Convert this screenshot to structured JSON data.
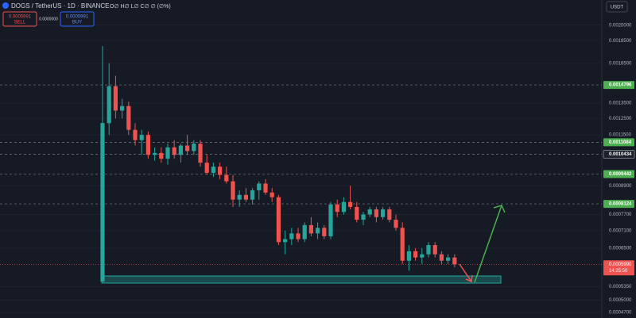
{
  "header": {
    "symbol": "DOGS / TetherUS · 1D · BINANCE",
    "ohlc": "O∅ H∅ L∅ C∅ ∅ (∅%)",
    "sell_price": "0.0005991",
    "sell_label": "SELL",
    "spread": "0.0000000",
    "buy_price": "0.0005991",
    "buy_label": "BUY",
    "currency": "USDT"
  },
  "chart_data": {
    "type": "candlestick",
    "log_scale": true,
    "grid": true,
    "up_color": "#26a69a",
    "down_color": "#ef5350",
    "ylim": [
      0.000457,
      0.00227
    ],
    "yticks": [
      {
        "value": 0.002,
        "label": "0.0020000"
      },
      {
        "value": 0.00185,
        "label": "0.0018500"
      },
      {
        "value": 0.00165,
        "label": "0.0016500"
      },
      {
        "value": 0.00135,
        "label": "0.0013500"
      },
      {
        "value": 0.00125,
        "label": "0.0012500"
      },
      {
        "value": 0.00115,
        "label": "0.0011500"
      },
      {
        "value": 0.00089,
        "label": "0.0008900"
      },
      {
        "value": 0.00077,
        "label": "0.0007700"
      },
      {
        "value": 0.00071,
        "label": "0.0007100"
      },
      {
        "value": 0.00065,
        "label": "0.0006500"
      },
      {
        "value": 0.000535,
        "label": "0.0005350"
      },
      {
        "value": 0.0005,
        "label": "0.0005000"
      },
      {
        "value": 0.00047,
        "label": "0.0004700"
      }
    ],
    "price_lines": [
      {
        "value": 0.0014796,
        "color": "#4caf50"
      },
      {
        "value": 0.0011084,
        "color": "#4caf50"
      },
      {
        "value": 0.0010434,
        "color": "#1e222d"
      },
      {
        "value": 0.0009442,
        "color": "#4caf50"
      },
      {
        "value": 0.0008124,
        "color": "#4caf50"
      }
    ],
    "last_price": {
      "value": 0.000599,
      "label": "0.0005990"
    },
    "countdown": "14:25:50",
    "open": [
      0.000549,
      0.00122,
      0.00147,
      0.0013,
      0.00133,
      0.00118,
      0.00112,
      0.00115,
      0.00104,
      0.00105,
      0.00102,
      0.00108,
      0.00104,
      0.00109,
      0.00106,
      0.0011,
      0.001,
      0.00095,
      0.00098,
      0.00094,
      0.00091,
      0.00083,
      0.00085,
      0.00083,
      0.00087,
      0.0009,
      0.00086,
      0.00084,
      0.00067,
      0.00068,
      0.0007,
      0.00068,
      0.00073,
      0.0007,
      0.00072,
      0.00069,
      0.00081,
      0.00078,
      0.00082,
      0.0008,
      0.00075,
      0.00077,
      0.00079,
      0.00076,
      0.00079,
      0.00075,
      0.00072,
      0.00061,
      0.00064,
      0.00062,
      0.00063,
      0.00066,
      0.00063,
      0.00061,
      0.00062
    ],
    "high": [
      0.0018,
      0.00165,
      0.00155,
      0.00138,
      0.00136,
      0.00122,
      0.00118,
      0.00117,
      0.00108,
      0.00108,
      0.0011,
      0.00112,
      0.0011,
      0.00115,
      0.00112,
      0.00112,
      0.00104,
      0.001,
      0.001,
      0.00098,
      0.00094,
      0.00087,
      0.00088,
      0.00088,
      0.00091,
      0.00092,
      0.00088,
      0.00085,
      0.00071,
      0.00072,
      0.00072,
      0.00074,
      0.00076,
      0.00074,
      0.00073,
      0.00082,
      0.00083,
      0.00084,
      0.00089,
      0.00082,
      0.00078,
      0.0008,
      0.0008,
      0.0008,
      0.0008,
      0.00077,
      0.00074,
      0.00066,
      0.00065,
      0.00065,
      0.00067,
      0.00067,
      0.00064,
      0.00063,
      0.00063
    ],
    "low": [
      0.000549,
      0.00115,
      0.00125,
      0.00125,
      0.00115,
      0.00109,
      0.00104,
      0.00102,
      0.00101,
      0.001,
      0.00099,
      0.00102,
      0.001,
      0.00104,
      0.00104,
      0.00098,
      0.00094,
      0.00093,
      0.00092,
      0.0009,
      0.0008,
      0.0008,
      0.00082,
      0.00081,
      0.00083,
      0.00085,
      0.00082,
      0.00066,
      0.00063,
      0.00066,
      0.00067,
      0.00067,
      0.00069,
      0.00068,
      0.00068,
      0.00068,
      0.00076,
      0.00077,
      0.00079,
      0.00074,
      0.00073,
      0.00076,
      0.00074,
      0.00075,
      0.00074,
      0.00071,
      0.0006,
      0.00058,
      0.00061,
      0.0006,
      0.00062,
      0.00062,
      0.0006,
      0.0006,
      0.00059
    ],
    "close": [
      0.001221,
      0.00147,
      0.0013,
      0.00133,
      0.00118,
      0.00112,
      0.00115,
      0.00104,
      0.00105,
      0.00102,
      0.00108,
      0.00104,
      0.00109,
      0.00106,
      0.0011,
      0.001,
      0.00095,
      0.00098,
      0.00094,
      0.00091,
      0.00083,
      0.00085,
      0.00083,
      0.00087,
      0.0009,
      0.00086,
      0.00084,
      0.00067,
      0.00068,
      0.0007,
      0.00068,
      0.00073,
      0.0007,
      0.00072,
      0.00069,
      0.00081,
      0.00078,
      0.00082,
      0.0008,
      0.00075,
      0.00077,
      0.00079,
      0.00076,
      0.00079,
      0.00075,
      0.00072,
      0.00061,
      0.00064,
      0.00062,
      0.00063,
      0.00066,
      0.00063,
      0.00061,
      0.00062,
      0.000599
    ]
  }
}
